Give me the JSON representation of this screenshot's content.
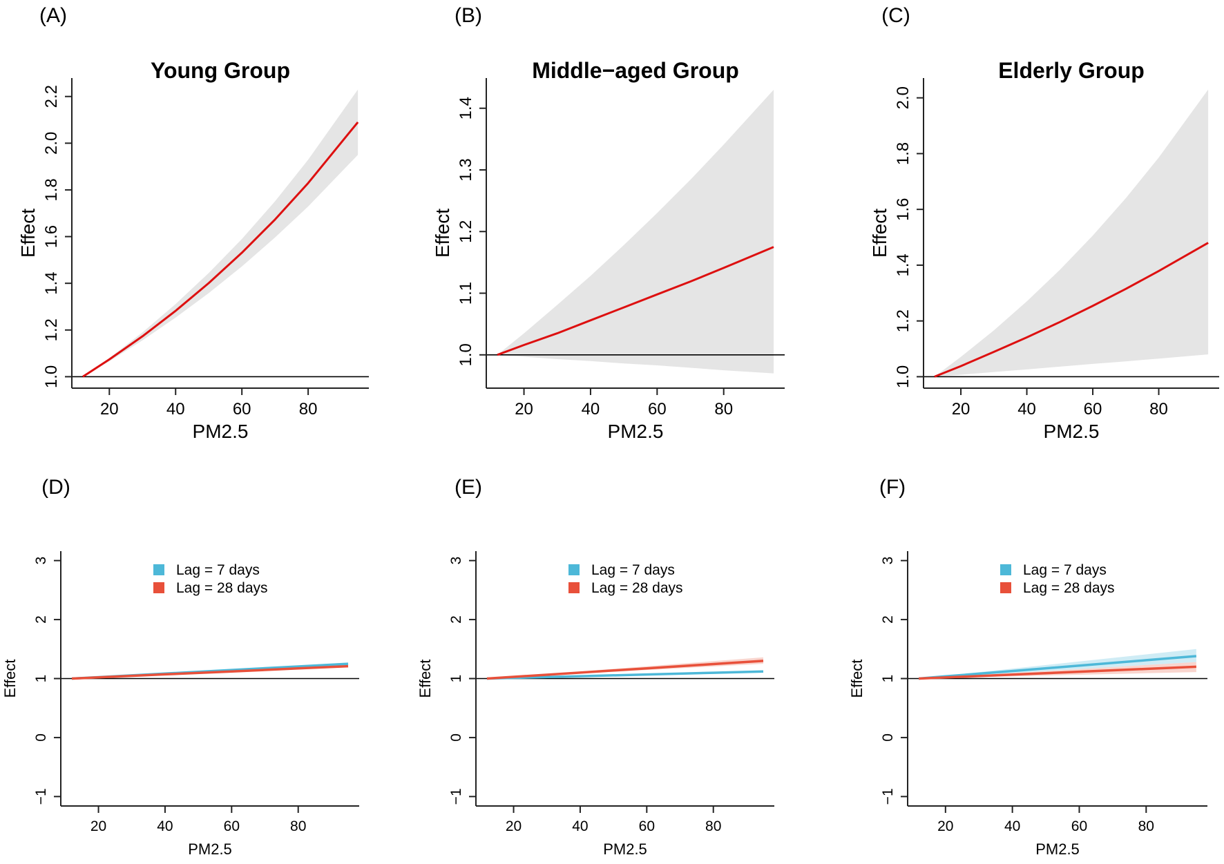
{
  "chart_data": [
    {
      "panel_label": "(A)",
      "title": "Young Group",
      "type": "line",
      "xlabel": "PM2.5",
      "ylabel": "Effect",
      "xlim": [
        8.68,
        98.32
      ],
      "ylim": [
        0.951,
        2.279
      ],
      "xticks": [
        {
          "value": 20,
          "label": "20"
        },
        {
          "value": 40,
          "label": "40"
        },
        {
          "value": 60,
          "label": "60"
        },
        {
          "value": 80,
          "label": "80"
        }
      ],
      "yticks": [
        {
          "value": 1.0,
          "label": "1.0"
        },
        {
          "value": 1.2,
          "label": "1.2"
        },
        {
          "value": 1.4,
          "label": "1.4"
        },
        {
          "value": 1.6,
          "label": "1.6"
        },
        {
          "value": 1.8,
          "label": "1.8"
        },
        {
          "value": 2.0,
          "label": "2.0"
        },
        {
          "value": 2.2,
          "label": "2.2"
        }
      ],
      "reference_line": 1,
      "grid": false,
      "series": [
        {
          "x": [
            12,
            20,
            30,
            40,
            50,
            60,
            70,
            80,
            95
          ],
          "y": [
            1.0,
            1.074,
            1.173,
            1.282,
            1.401,
            1.531,
            1.673,
            1.829,
            2.09
          ],
          "lower": [
            1.0,
            1.066,
            1.156,
            1.253,
            1.358,
            1.472,
            1.596,
            1.729,
            1.95
          ],
          "upper": [
            1.0,
            1.08,
            1.19,
            1.311,
            1.444,
            1.59,
            1.751,
            1.929,
            2.23
          ],
          "color": "#dd1010",
          "band_color": "#e5e5e5"
        }
      ]
    },
    {
      "panel_label": "(B)",
      "title": "Middle−aged Group",
      "type": "line",
      "xlabel": "PM2.5",
      "ylabel": "Effect",
      "xlim": [
        8.68,
        98.32
      ],
      "ylim": [
        0.946,
        1.449
      ],
      "xticks": [
        {
          "value": 20,
          "label": "20"
        },
        {
          "value": 40,
          "label": "40"
        },
        {
          "value": 60,
          "label": "60"
        },
        {
          "value": 80,
          "label": "80"
        }
      ],
      "yticks": [
        {
          "value": 1.0,
          "label": "1.0"
        },
        {
          "value": 1.1,
          "label": "1.1"
        },
        {
          "value": 1.2,
          "label": "1.2"
        },
        {
          "value": 1.3,
          "label": "1.3"
        },
        {
          "value": 1.4,
          "label": "1.4"
        }
      ],
      "reference_line": 1,
      "grid": false,
      "series": [
        {
          "x": [
            12,
            20,
            30,
            40,
            50,
            60,
            70,
            80,
            95
          ],
          "y": [
            1.0,
            1.016,
            1.035,
            1.056,
            1.077,
            1.098,
            1.119,
            1.141,
            1.175
          ],
          "lower": [
            1.0,
            0.997,
            0.993,
            0.99,
            0.986,
            0.983,
            0.979,
            0.975,
            0.97
          ],
          "upper": [
            1.0,
            1.035,
            1.081,
            1.128,
            1.178,
            1.23,
            1.284,
            1.341,
            1.43
          ],
          "color": "#dd1010",
          "band_color": "#e5e5e5"
        }
      ]
    },
    {
      "panel_label": "(C)",
      "title": "Elderly Group",
      "type": "line",
      "xlabel": "PM2.5",
      "ylabel": "Effect",
      "xlim": [
        8.68,
        98.32
      ],
      "ylim": [
        0.959,
        2.071
      ],
      "xticks": [
        {
          "value": 20,
          "label": "20"
        },
        {
          "value": 40,
          "label": "40"
        },
        {
          "value": 60,
          "label": "60"
        },
        {
          "value": 80,
          "label": "80"
        }
      ],
      "yticks": [
        {
          "value": 1.0,
          "label": "1.0"
        },
        {
          "value": 1.2,
          "label": "1.2"
        },
        {
          "value": 1.4,
          "label": "1.4"
        },
        {
          "value": 1.6,
          "label": "1.6"
        },
        {
          "value": 1.8,
          "label": "1.8"
        },
        {
          "value": 2.0,
          "label": "2.0"
        }
      ],
      "reference_line": 1,
      "grid": false,
      "series": [
        {
          "x": [
            12,
            20,
            30,
            40,
            50,
            60,
            70,
            80,
            95
          ],
          "y": [
            1.0,
            1.038,
            1.089,
            1.141,
            1.196,
            1.254,
            1.315,
            1.379,
            1.48
          ],
          "lower": [
            1.0,
            1.007,
            1.017,
            1.026,
            1.036,
            1.046,
            1.055,
            1.065,
            1.08
          ],
          "upper": [
            1.0,
            1.071,
            1.166,
            1.27,
            1.383,
            1.506,
            1.64,
            1.786,
            2.03
          ],
          "color": "#dd1010",
          "band_color": "#e5e5e5"
        }
      ]
    },
    {
      "panel_label": "(D)",
      "title": "",
      "type": "line",
      "xlabel": "PM2.5",
      "ylabel": "Effect",
      "xlim": [
        8.68,
        98.32
      ],
      "ylim": [
        -1.16,
        3.16
      ],
      "xticks": [
        {
          "value": 20,
          "label": "20"
        },
        {
          "value": 40,
          "label": "40"
        },
        {
          "value": 60,
          "label": "60"
        },
        {
          "value": 80,
          "label": "80"
        }
      ],
      "yticks": [
        {
          "value": -1,
          "label": "−1"
        },
        {
          "value": 0,
          "label": "0"
        },
        {
          "value": 1,
          "label": "1"
        },
        {
          "value": 2,
          "label": "2"
        },
        {
          "value": 3,
          "label": "3"
        }
      ],
      "reference_line": 1,
      "grid": false,
      "legend": {
        "placement": "top-center"
      },
      "series": [
        {
          "name": "Lag = 7 days",
          "x": [
            12,
            20,
            40,
            60,
            80,
            95
          ],
          "y": [
            1.0,
            1.024,
            1.084,
            1.145,
            1.205,
            1.25
          ],
          "lower": [
            1.0,
            1.022,
            1.078,
            1.133,
            1.188,
            1.23
          ],
          "upper": [
            1.0,
            1.026,
            1.091,
            1.156,
            1.221,
            1.27
          ],
          "color": "#4db8d8",
          "band_color": "#bfe6f1"
        },
        {
          "name": "Lag = 28 days",
          "x": [
            12,
            20,
            40,
            60,
            80,
            95
          ],
          "y": [
            1.0,
            1.02,
            1.071,
            1.121,
            1.172,
            1.21
          ],
          "lower": [
            1.0,
            1.018,
            1.064,
            1.11,
            1.156,
            1.19
          ],
          "upper": [
            1.0,
            1.022,
            1.078,
            1.133,
            1.188,
            1.23
          ],
          "color": "#e8503a",
          "band_color": "#f7c7bd"
        }
      ]
    },
    {
      "panel_label": "(E)",
      "title": "",
      "type": "line",
      "xlabel": "PM2.5",
      "ylabel": "Effect",
      "xlim": [
        8.68,
        98.32
      ],
      "ylim": [
        -1.16,
        3.16
      ],
      "xticks": [
        {
          "value": 20,
          "label": "20"
        },
        {
          "value": 40,
          "label": "40"
        },
        {
          "value": 60,
          "label": "60"
        },
        {
          "value": 80,
          "label": "80"
        }
      ],
      "yticks": [
        {
          "value": -1,
          "label": "−1"
        },
        {
          "value": 0,
          "label": "0"
        },
        {
          "value": 1,
          "label": "1"
        },
        {
          "value": 2,
          "label": "2"
        },
        {
          "value": 3,
          "label": "3"
        }
      ],
      "reference_line": 1,
      "grid": false,
      "legend": {
        "placement": "top-center"
      },
      "series": [
        {
          "name": "Lag = 7 days",
          "x": [
            12,
            20,
            40,
            60,
            80,
            95
          ],
          "y": [
            1.0,
            1.012,
            1.04,
            1.069,
            1.098,
            1.12
          ],
          "lower": [
            1.0,
            1.01,
            1.034,
            1.058,
            1.082,
            1.1
          ],
          "upper": [
            1.0,
            1.013,
            1.047,
            1.081,
            1.115,
            1.14
          ],
          "color": "#4db8d8",
          "band_color": "#bfe6f1"
        },
        {
          "name": "Lag = 28 days",
          "x": [
            12,
            20,
            40,
            60,
            80,
            95
          ],
          "y": [
            1.0,
            1.029,
            1.101,
            1.173,
            1.246,
            1.3
          ],
          "lower": [
            1.0,
            1.024,
            1.084,
            1.145,
            1.205,
            1.25
          ],
          "upper": [
            1.0,
            1.035,
            1.121,
            1.208,
            1.295,
            1.36
          ],
          "color": "#e8503a",
          "band_color": "#f7c7bd"
        }
      ]
    },
    {
      "panel_label": "(F)",
      "title": "",
      "type": "line",
      "xlabel": "PM2.5",
      "ylabel": "Effect",
      "xlim": [
        8.68,
        98.32
      ],
      "ylim": [
        -1.16,
        3.16
      ],
      "xticks": [
        {
          "value": 20,
          "label": "20"
        },
        {
          "value": 40,
          "label": "40"
        },
        {
          "value": 60,
          "label": "60"
        },
        {
          "value": 80,
          "label": "80"
        }
      ],
      "yticks": [
        {
          "value": -1,
          "label": "−1"
        },
        {
          "value": 0,
          "label": "0"
        },
        {
          "value": 1,
          "label": "1"
        },
        {
          "value": 2,
          "label": "2"
        },
        {
          "value": 3,
          "label": "3"
        }
      ],
      "reference_line": 1,
      "grid": false,
      "legend": {
        "placement": "top-center"
      },
      "series": [
        {
          "name": "Lag = 7 days",
          "x": [
            12,
            20,
            40,
            60,
            80,
            95
          ],
          "y": [
            1.0,
            1.037,
            1.128,
            1.22,
            1.311,
            1.38
          ],
          "lower": [
            1.0,
            1.027,
            1.094,
            1.162,
            1.229,
            1.28
          ],
          "upper": [
            1.0,
            1.048,
            1.169,
            1.289,
            1.41,
            1.5
          ],
          "color": "#4db8d8",
          "band_color": "#bfe6f1"
        },
        {
          "name": "Lag = 28 days",
          "x": [
            12,
            20,
            40,
            60,
            80,
            95
          ],
          "y": [
            1.0,
            1.019,
            1.067,
            1.116,
            1.164,
            1.2
          ],
          "lower": [
            1.0,
            1.011,
            1.037,
            1.064,
            1.09,
            1.11
          ],
          "upper": [
            1.0,
            1.027,
            1.094,
            1.162,
            1.229,
            1.28
          ],
          "color": "#e8503a",
          "band_color": "#f7c7bd"
        }
      ]
    }
  ]
}
